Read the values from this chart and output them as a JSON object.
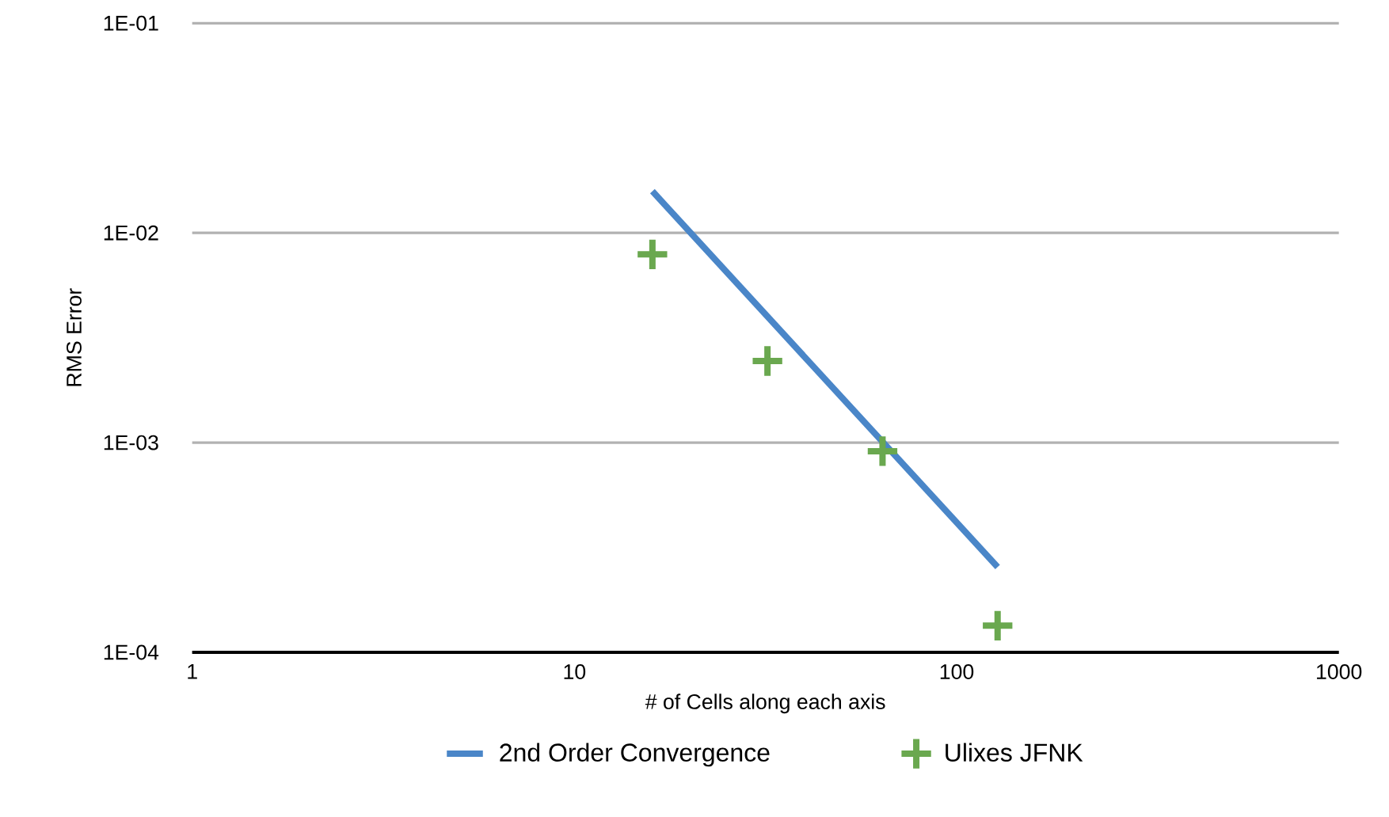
{
  "chart_data": {
    "type": "scatter",
    "xlabel": "# of Cells along each axis",
    "ylabel": "RMS Error",
    "log": "xy",
    "xlim": [
      1,
      1000
    ],
    "ylim": [
      0.0001,
      0.1
    ],
    "xticks": [
      1,
      10,
      100,
      1000
    ],
    "yticks": [
      {
        "value": 0.0001,
        "label": "1E-04"
      },
      {
        "value": 0.001,
        "label": "1E-03"
      },
      {
        "value": 0.01,
        "label": "1E-02"
      },
      {
        "value": 0.1,
        "label": "1E-01"
      }
    ],
    "grid": "y",
    "legend": "bottom",
    "series": [
      {
        "name": "2nd Order Convergence",
        "type": "line",
        "color": "#4a86c8",
        "marker": "none",
        "x": [
          16,
          128
        ],
        "values": [
          0.0158,
          0.000255
        ]
      },
      {
        "name": "Ulixes JFNK",
        "color": "#6aa84f",
        "marker": "cross",
        "x": [
          16,
          32,
          64,
          128
        ],
        "values": [
          0.0079,
          0.00245,
          0.00091,
          0.000134
        ]
      }
    ]
  }
}
